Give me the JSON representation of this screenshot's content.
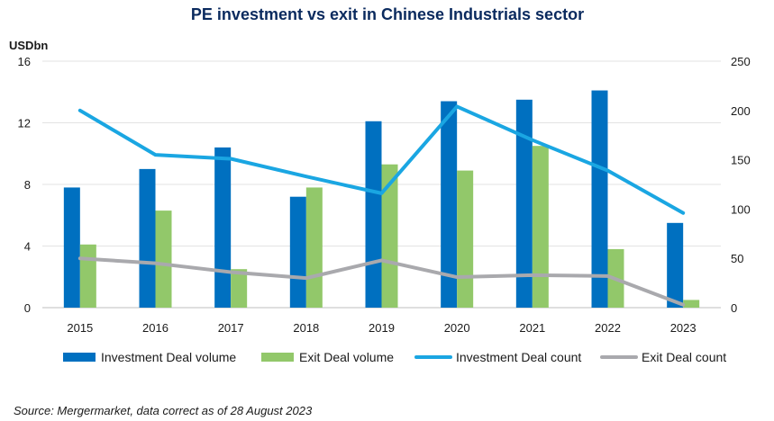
{
  "chart_data": {
    "type": "bar",
    "title": "PE investment vs exit in Chinese Industrials sector",
    "y_left_label": "USDbn",
    "categories": [
      "2015",
      "2016",
      "2017",
      "2018",
      "2019",
      "2020",
      "2021",
      "2022",
      "2023"
    ],
    "y_left_ticks": [
      "0",
      "4",
      "8",
      "12",
      "16"
    ],
    "y_left_lim": [
      0,
      16
    ],
    "y_right_ticks": [
      "0",
      "50",
      "100",
      "150",
      "200",
      "250"
    ],
    "y_right_lim": [
      0,
      250
    ],
    "grid": true,
    "legend_position": "bottom",
    "series": [
      {
        "name": "Investment Deal volume",
        "kind": "bar",
        "axis": "left",
        "color": "#0070c0",
        "values": [
          7.8,
          9.0,
          10.4,
          7.2,
          12.1,
          13.4,
          13.5,
          14.1,
          5.5
        ]
      },
      {
        "name": "Exit Deal volume",
        "kind": "bar",
        "axis": "left",
        "color": "#92c86a",
        "values": [
          4.1,
          6.3,
          2.5,
          7.8,
          9.3,
          8.9,
          10.5,
          3.8,
          0.5
        ]
      },
      {
        "name": "Investment Deal count",
        "kind": "line",
        "axis": "right",
        "color": "#1aa6e2",
        "values": [
          200,
          155,
          151,
          133,
          116,
          204,
          170,
          139,
          96
        ]
      },
      {
        "name": "Exit Deal count",
        "kind": "line",
        "axis": "right",
        "color": "#a9a9ad",
        "values": [
          50,
          45,
          36,
          30,
          48,
          31,
          33,
          32,
          3
        ]
      }
    ],
    "source": "Source: Mergermarket, data correct as of 28 August 2023"
  }
}
